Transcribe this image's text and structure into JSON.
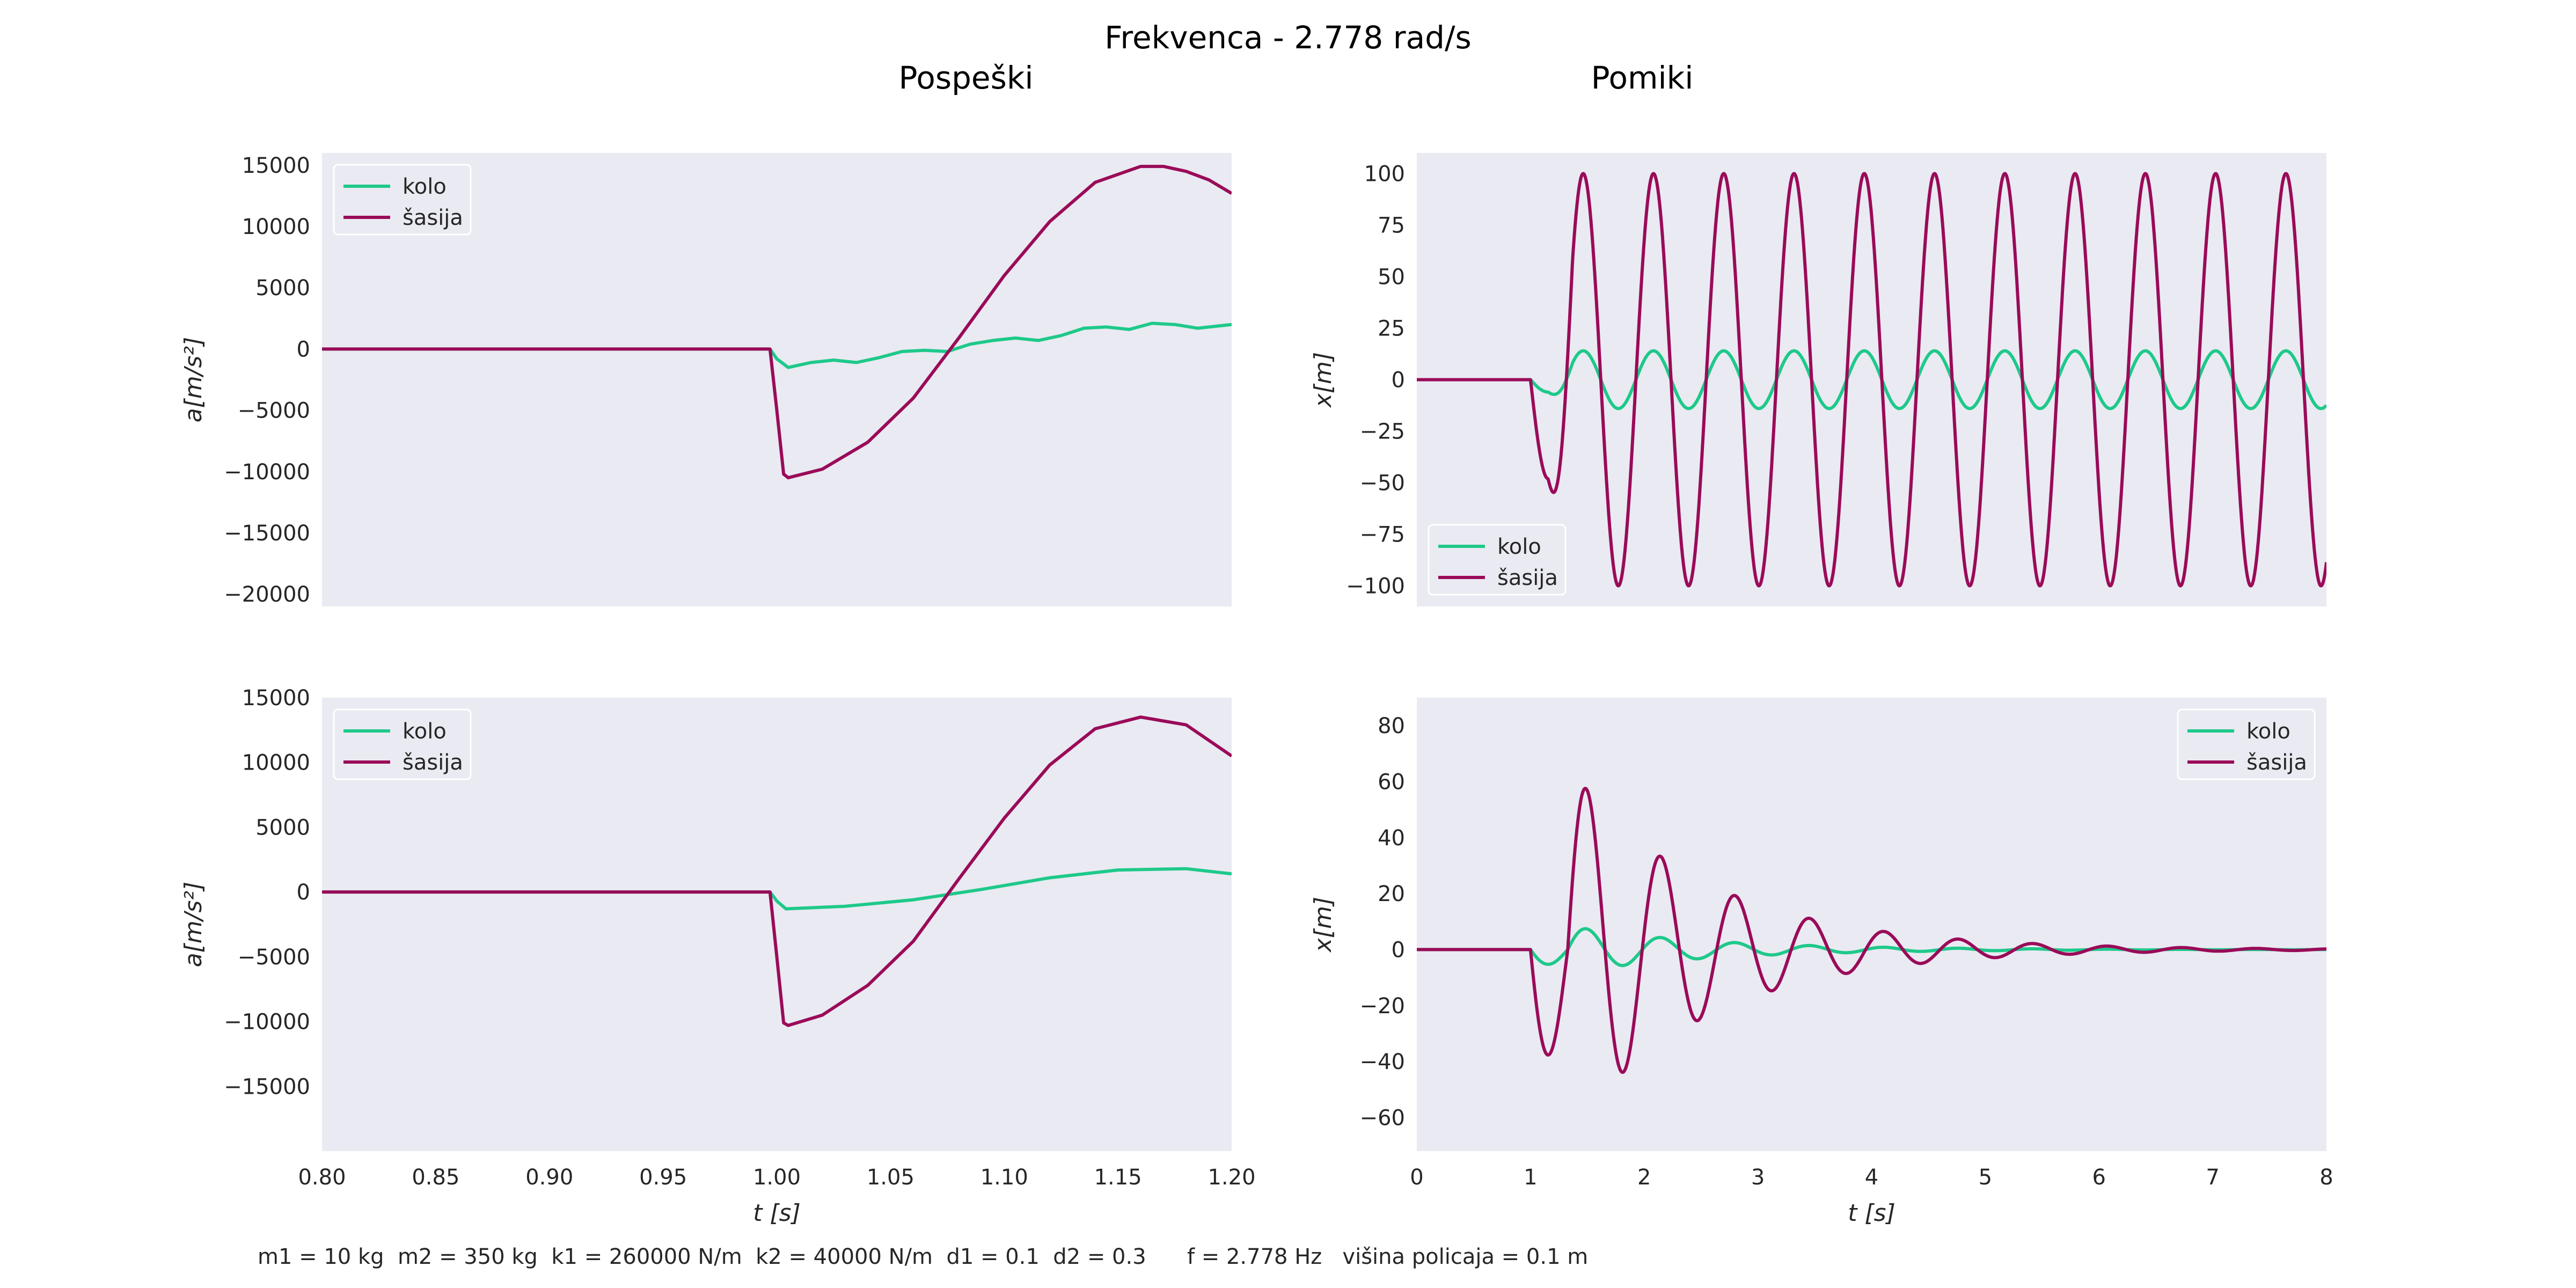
{
  "suptitle": "Frekvenca - 2.778 rad/s",
  "column_titles": [
    "Pospeški",
    "Pomiki"
  ],
  "footer": "m1 = 10 kg  m2 = 350 kg  k1 = 260000 N/m  k2 = 40000 N/m  d1 = 0.1  d2 = 0.3      f = 2.778 Hz   višina policaja = 0.1 m",
  "colors": {
    "kolo": "#1ec98a",
    "sasija": "#9a0b59",
    "plot_bg": "#eaeaf2",
    "text": "#262626"
  },
  "chart_data": [
    {
      "type": "line",
      "panel": "top-left",
      "ylabel": "a[m/s²]",
      "xlabel": "",
      "xlim": [
        0.8,
        1.2
      ],
      "ylim": [
        -21000,
        16000
      ],
      "yticks": [
        15000,
        10000,
        5000,
        0,
        -5000,
        -10000,
        -15000,
        -20000
      ],
      "xticks": [],
      "legend": "top-left",
      "grid": false,
      "series": [
        {
          "name": "kolo",
          "color": "#1ec98a",
          "x": [
            0.8,
            0.997,
            1.0,
            1.005,
            1.015,
            1.025,
            1.035,
            1.045,
            1.055,
            1.065,
            1.075,
            1.085,
            1.095,
            1.105,
            1.115,
            1.125,
            1.135,
            1.145,
            1.155,
            1.165,
            1.175,
            1.185,
            1.195,
            1.2
          ],
          "y": [
            0,
            0,
            -800,
            -1500,
            -1100,
            -900,
            -1100,
            -700,
            -200,
            -100,
            -200,
            400,
            700,
            900,
            700,
            1100,
            1700,
            1800,
            1600,
            2100,
            2000,
            1700,
            1900,
            2000
          ]
        },
        {
          "name": "šasija",
          "color": "#9a0b59",
          "x": [
            0.8,
            0.997,
            1.0,
            1.003,
            1.005,
            1.02,
            1.04,
            1.06,
            1.08,
            1.1,
            1.12,
            1.14,
            1.16,
            1.17,
            1.18,
            1.19,
            1.2
          ],
          "y": [
            0,
            0,
            -5000,
            -10200,
            -10500,
            -9800,
            -7600,
            -4000,
            900,
            6000,
            10400,
            13600,
            14900,
            14900,
            14500,
            13800,
            12700
          ]
        }
      ]
    },
    {
      "type": "line",
      "panel": "top-right",
      "ylabel": "x[m]",
      "xlabel": "",
      "xlim": [
        0,
        8
      ],
      "ylim": [
        -110,
        110
      ],
      "yticks": [
        100,
        75,
        50,
        25,
        0,
        -25,
        -50,
        -75,
        -100
      ],
      "xticks": [],
      "legend": "bottom-left",
      "grid": false,
      "steady": {
        "start": 1.0,
        "period": 0.618
      },
      "series": [
        {
          "name": "kolo",
          "color": "#1ec98a",
          "kind": "steady",
          "amplitude": 14,
          "transient": -6,
          "phase": 0
        },
        {
          "name": "šasija",
          "color": "#9a0b59",
          "kind": "steady",
          "amplitude": 100,
          "transient": -48,
          "phase": 0
        }
      ]
    },
    {
      "type": "line",
      "panel": "bottom-left",
      "ylabel": "a[m/s²]",
      "xlabel": "t [s]",
      "xlim": [
        0.8,
        1.2
      ],
      "ylim": [
        -20000,
        15000
      ],
      "yticks": [
        15000,
        10000,
        5000,
        0,
        -5000,
        -10000,
        -15000
      ],
      "xticks": [
        "0.80",
        "0.85",
        "0.90",
        "0.95",
        "1.00",
        "1.05",
        "1.10",
        "1.15",
        "1.20"
      ],
      "legend": "top-left",
      "grid": false,
      "series": [
        {
          "name": "kolo",
          "color": "#1ec98a",
          "x": [
            0.8,
            0.997,
            1.0,
            1.004,
            1.03,
            1.06,
            1.09,
            1.12,
            1.15,
            1.18,
            1.2
          ],
          "y": [
            0,
            0,
            -700,
            -1300,
            -1100,
            -600,
            200,
            1100,
            1700,
            1800,
            1400
          ]
        },
        {
          "name": "šasija",
          "color": "#9a0b59",
          "x": [
            0.8,
            0.997,
            1.0,
            1.003,
            1.005,
            1.02,
            1.04,
            1.06,
            1.08,
            1.1,
            1.12,
            1.14,
            1.16,
            1.18,
            1.2
          ],
          "y": [
            0,
            0,
            -5000,
            -10100,
            -10300,
            -9500,
            -7200,
            -3800,
            1000,
            5700,
            9800,
            12600,
            13500,
            12900,
            10500
          ]
        }
      ]
    },
    {
      "type": "line",
      "panel": "bottom-right",
      "ylabel": "x[m]",
      "xlabel": "t [s]",
      "xlim": [
        0,
        8
      ],
      "ylim": [
        -72,
        90
      ],
      "yticks": [
        80,
        60,
        40,
        20,
        0,
        -20,
        -40,
        -60
      ],
      "xticks": [
        "0",
        "1",
        "2",
        "3",
        "4",
        "5",
        "6",
        "7",
        "8"
      ],
      "legend": "top-right",
      "grid": false,
      "decay": {
        "start": 1.0,
        "period": 0.655,
        "tau": 1.2
      },
      "series": [
        {
          "name": "kolo",
          "color": "#1ec98a",
          "kind": "decay",
          "amplitude": 14,
          "transient": -6
        },
        {
          "name": "šasija",
          "color": "#9a0b59",
          "kind": "decay",
          "amplitude": 108,
          "transient": -43
        }
      ]
    }
  ]
}
